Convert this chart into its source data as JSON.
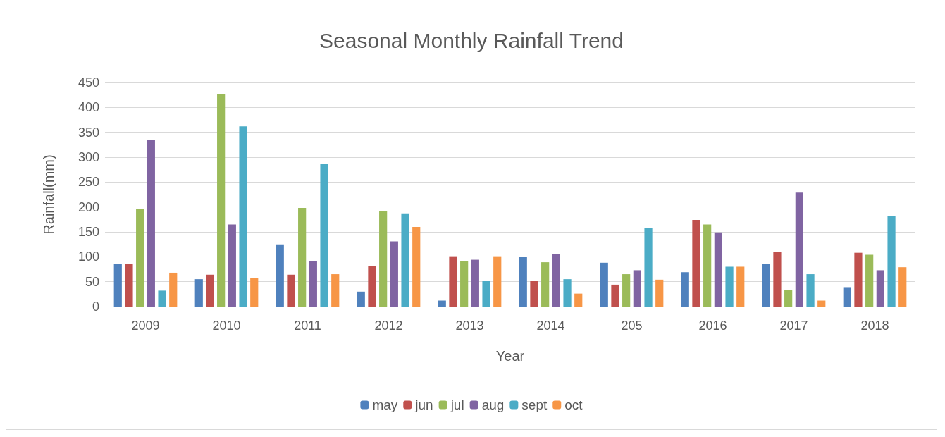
{
  "chart_data": {
    "type": "bar",
    "title": "Seasonal Monthly Rainfall Trend",
    "xlabel": "Year",
    "ylabel": "Rainfall(mm)",
    "categories": [
      "2009",
      "2010",
      "2011",
      "2012",
      "2013",
      "2014",
      "205",
      "2016",
      "2017",
      "2018"
    ],
    "series": [
      {
        "name": "may",
        "color": "#4f81bd",
        "values": [
          86,
          55,
          125,
          30,
          12,
          100,
          88,
          69,
          85,
          39
        ]
      },
      {
        "name": "jun",
        "color": "#c0504d",
        "values": [
          86,
          64,
          64,
          82,
          101,
          51,
          44,
          174,
          110,
          108
        ]
      },
      {
        "name": "jul",
        "color": "#9bbb59",
        "values": [
          196,
          426,
          198,
          191,
          92,
          89,
          65,
          165,
          33,
          104
        ]
      },
      {
        "name": "aug",
        "color": "#8064a2",
        "values": [
          335,
          165,
          91,
          131,
          94,
          105,
          73,
          149,
          229,
          73
        ]
      },
      {
        "name": "sept",
        "color": "#4bacc6",
        "values": [
          32,
          362,
          287,
          187,
          52,
          55,
          158,
          80,
          65,
          182
        ]
      },
      {
        "name": "oct",
        "color": "#f79646",
        "values": [
          68,
          58,
          65,
          160,
          101,
          26,
          54,
          80,
          12,
          79
        ]
      }
    ],
    "ylim": [
      0,
      450
    ],
    "yticks": [
      0,
      50,
      100,
      150,
      200,
      250,
      300,
      350,
      400,
      450
    ],
    "grid": "y",
    "legend": "bottom"
  }
}
